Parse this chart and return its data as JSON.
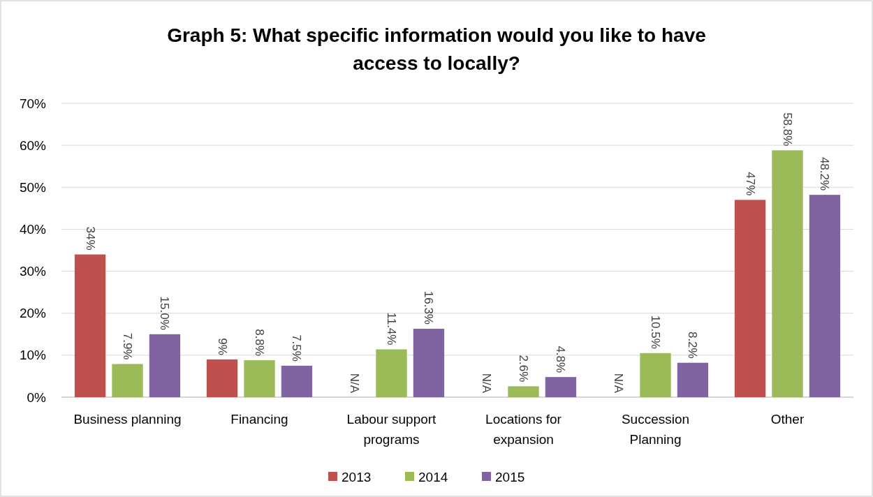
{
  "chart_data": {
    "type": "bar",
    "title": "Graph 5: What specific information would you like to have access to locally?",
    "categories": [
      "Business planning",
      "Financing",
      "Labour support programs",
      "Locations for expansion",
      "Succession Planning",
      "Other"
    ],
    "series": [
      {
        "name": "2013",
        "color": "#c0504d",
        "values": [
          34,
          9,
          null,
          null,
          null,
          47
        ],
        "value_labels": [
          "34%",
          "9%",
          "N/A",
          "N/A",
          "N/A",
          "47%"
        ]
      },
      {
        "name": "2014",
        "color": "#9bbb59",
        "values": [
          7.9,
          8.8,
          11.4,
          2.6,
          10.5,
          58.8
        ],
        "value_labels": [
          "7.9%",
          "8.8%",
          "11.4%",
          "2.6%",
          "10.5%",
          "58.8%"
        ]
      },
      {
        "name": "2015",
        "color": "#8064a2",
        "values": [
          15.0,
          7.5,
          16.3,
          4.8,
          8.2,
          48.2
        ],
        "value_labels": [
          "15.0%",
          "7.5%",
          "16.3%",
          "4.8%",
          "8.2%",
          "48.2%"
        ]
      }
    ],
    "ylim": [
      0,
      70
    ],
    "yticks": [
      {
        "value": 0,
        "label": "0%"
      },
      {
        "value": 10,
        "label": "10%"
      },
      {
        "value": 20,
        "label": "20%"
      },
      {
        "value": 30,
        "label": "30%"
      },
      {
        "value": 40,
        "label": "40%"
      },
      {
        "value": 50,
        "label": "50%"
      },
      {
        "value": 60,
        "label": "60%"
      },
      {
        "value": 70,
        "label": "70%"
      }
    ],
    "grid": "y",
    "legend": "bottom"
  }
}
